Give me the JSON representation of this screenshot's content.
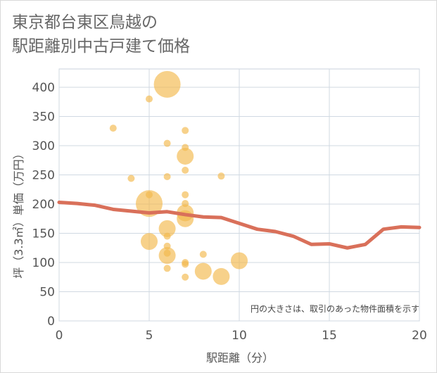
{
  "title_line1": "東京都台東区鳥越の",
  "title_line2": "駅距離別中古戸建て価格",
  "chart_data": {
    "type": "scatter",
    "title": "東京都台東区鳥越の駅距離別中古戸建て価格",
    "xlabel": "駅距離（分）",
    "ylabel": "坪（3.3㎡）単価（万円）",
    "xlim": [
      0,
      20
    ],
    "ylim": [
      0,
      420
    ],
    "x_ticks": [
      0,
      5,
      10,
      15,
      20
    ],
    "y_ticks": [
      0,
      50,
      100,
      150,
      200,
      250,
      300,
      350,
      400
    ],
    "grid": true,
    "annotation": "円の大きさは、取引のあった物件面積を示す",
    "bubble_color": "#f2b84b",
    "trend_color": "#d9705a",
    "points": [
      {
        "x": 6,
        "y": 405,
        "size": 3
      },
      {
        "x": 5,
        "y": 380,
        "size": 1
      },
      {
        "x": 3,
        "y": 330,
        "size": 1
      },
      {
        "x": 7,
        "y": 326,
        "size": 1
      },
      {
        "x": 6,
        "y": 304,
        "size": 1
      },
      {
        "x": 7,
        "y": 297,
        "size": 1
      },
      {
        "x": 7,
        "y": 282,
        "size": 2
      },
      {
        "x": 7,
        "y": 258,
        "size": 1
      },
      {
        "x": 6,
        "y": 247,
        "size": 1
      },
      {
        "x": 9,
        "y": 248,
        "size": 1
      },
      {
        "x": 4,
        "y": 244,
        "size": 1
      },
      {
        "x": 5,
        "y": 216,
        "size": 1
      },
      {
        "x": 7,
        "y": 216,
        "size": 1
      },
      {
        "x": 5,
        "y": 201,
        "size": 3
      },
      {
        "x": 7,
        "y": 201,
        "size": 1
      },
      {
        "x": 7,
        "y": 185,
        "size": 2
      },
      {
        "x": 7,
        "y": 175,
        "size": 2
      },
      {
        "x": 6,
        "y": 158,
        "size": 2
      },
      {
        "x": 6,
        "y": 145,
        "size": 1
      },
      {
        "x": 5,
        "y": 136,
        "size": 2
      },
      {
        "x": 6,
        "y": 128,
        "size": 1
      },
      {
        "x": 6,
        "y": 116,
        "size": 1
      },
      {
        "x": 6,
        "y": 112,
        "size": 2
      },
      {
        "x": 8,
        "y": 114,
        "size": 1
      },
      {
        "x": 10,
        "y": 103,
        "size": 2
      },
      {
        "x": 7,
        "y": 100,
        "size": 1
      },
      {
        "x": 7,
        "y": 97,
        "size": 1
      },
      {
        "x": 6,
        "y": 90,
        "size": 1
      },
      {
        "x": 8,
        "y": 85,
        "size": 2
      },
      {
        "x": 9,
        "y": 76,
        "size": 2
      },
      {
        "x": 7,
        "y": 75,
        "size": 1
      }
    ],
    "trend": {
      "x": [
        0,
        1,
        2,
        3,
        4,
        5,
        6,
        7,
        8,
        9,
        10,
        11,
        12,
        13,
        14,
        15,
        16,
        17,
        18,
        19,
        20
      ],
      "y": [
        203,
        201,
        198,
        191,
        188,
        185,
        187,
        182,
        178,
        177,
        167,
        157,
        153,
        145,
        131,
        132,
        125,
        131,
        157,
        161,
        160
      ]
    }
  }
}
